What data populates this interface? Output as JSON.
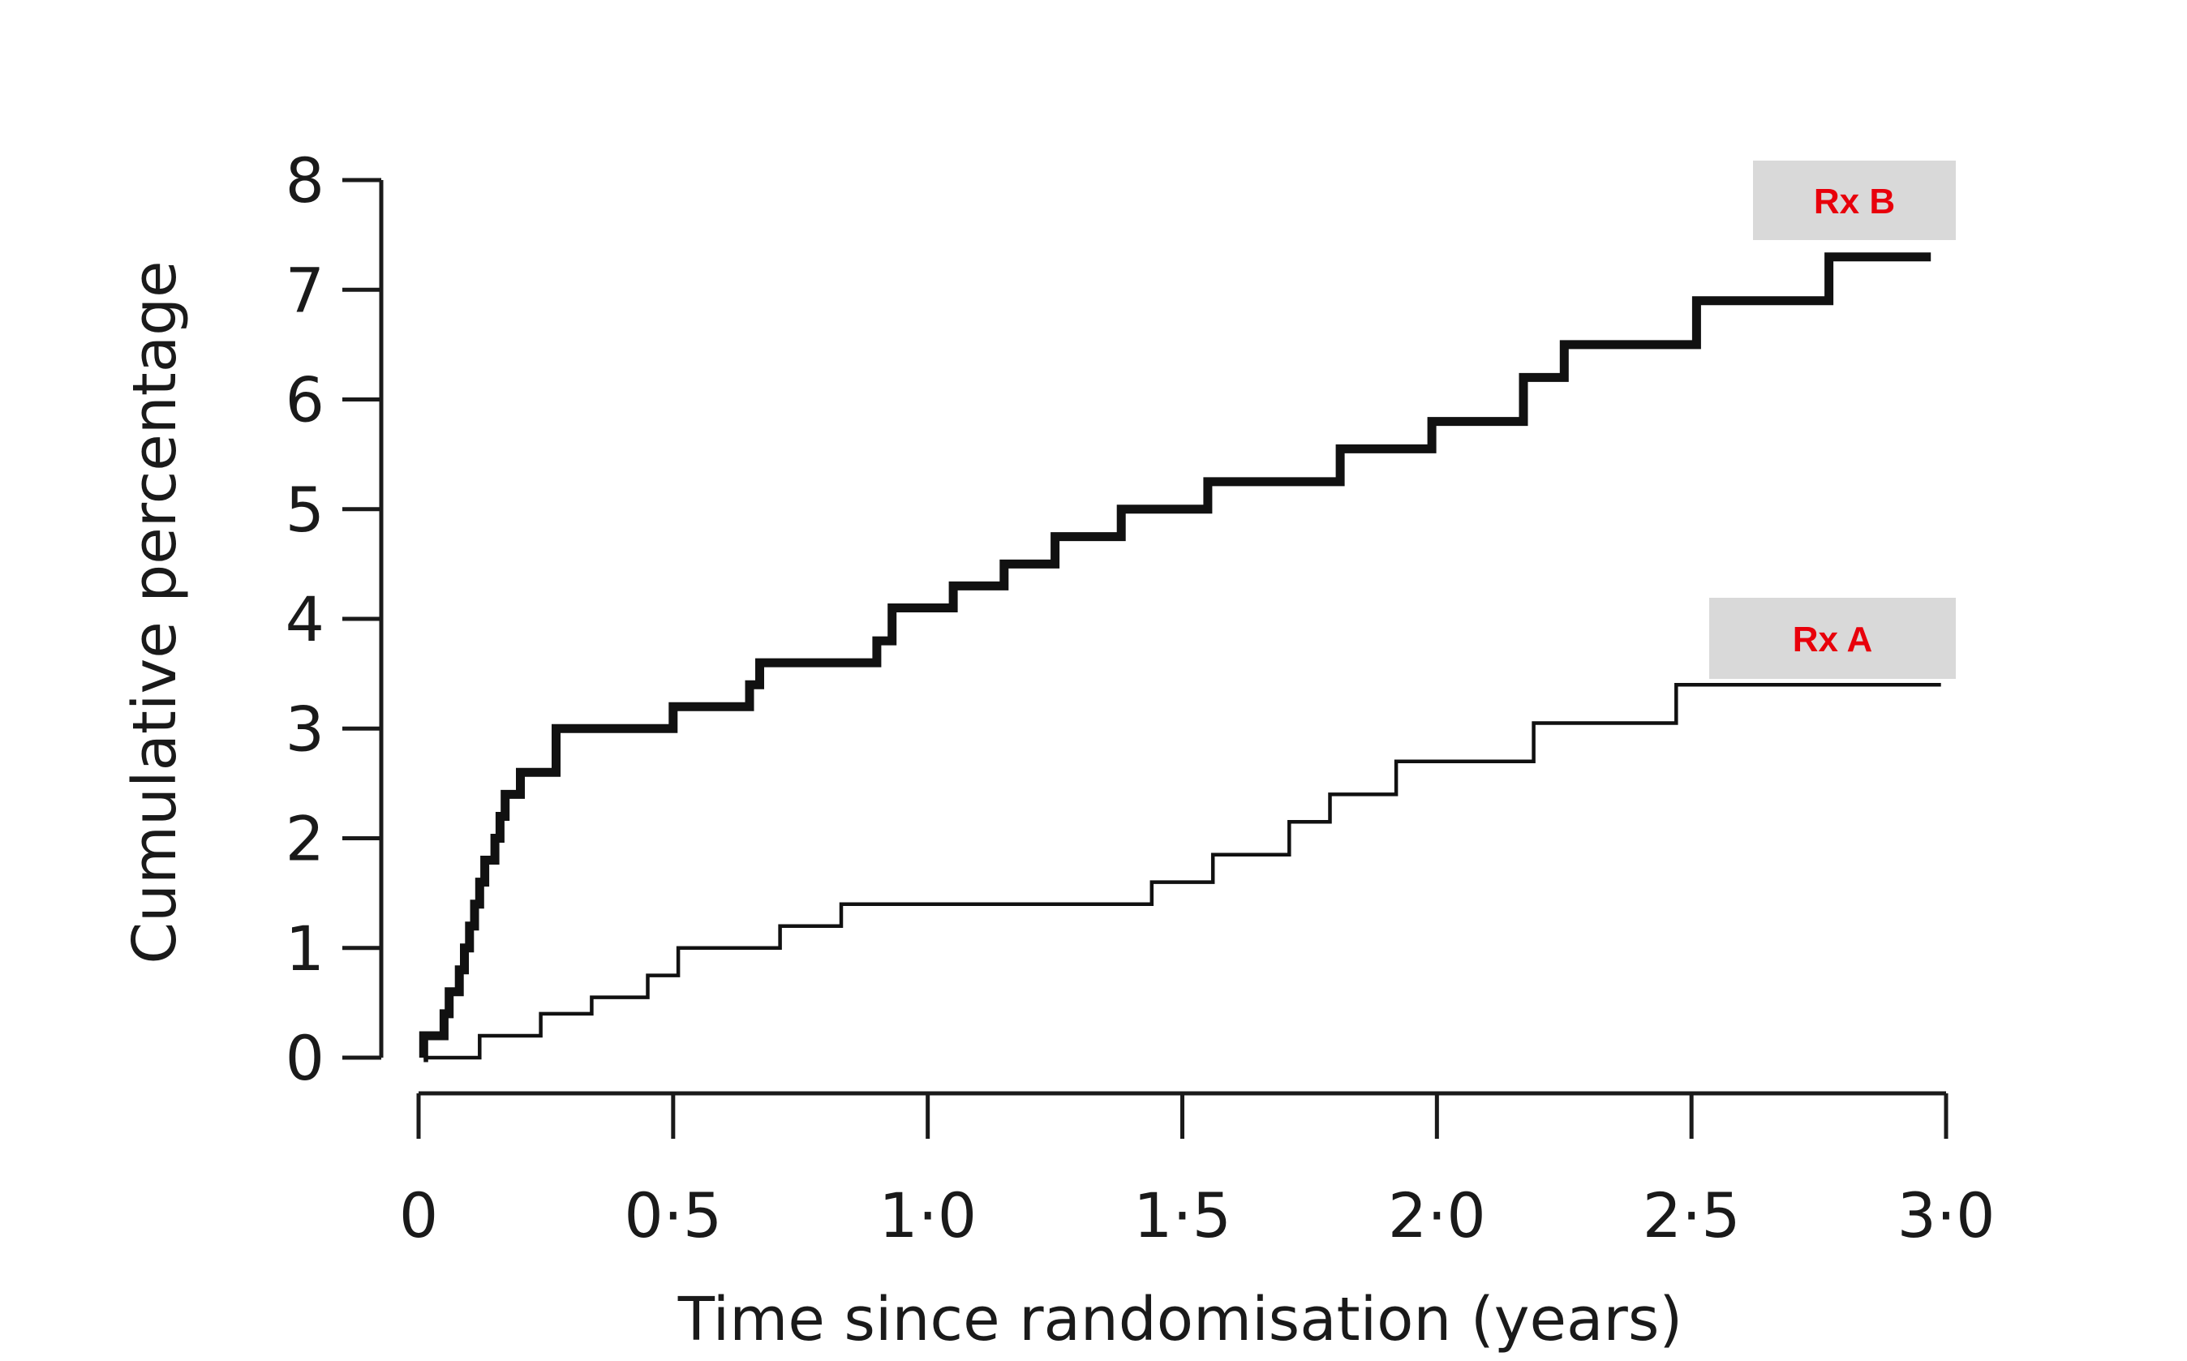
{
  "chart_data": {
    "type": "line",
    "step": true,
    "xlabel": "Time since randomisation (years)",
    "ylabel": "Cumulative percentage",
    "xlim": [
      0,
      3
    ],
    "ylim": [
      0,
      8
    ],
    "x_ticks": [
      {
        "value": 0,
        "label": "0"
      },
      {
        "value": 0.5,
        "label": "0·5"
      },
      {
        "value": 1.0,
        "label": "1·0"
      },
      {
        "value": 1.5,
        "label": "1·5"
      },
      {
        "value": 2.0,
        "label": "2·0"
      },
      {
        "value": 2.5,
        "label": "2·5"
      },
      {
        "value": 3.0,
        "label": "3·0"
      }
    ],
    "y_ticks": [
      {
        "value": 0,
        "label": "0"
      },
      {
        "value": 1,
        "label": "1"
      },
      {
        "value": 2,
        "label": "2"
      },
      {
        "value": 3,
        "label": "3"
      },
      {
        "value": 4,
        "label": "4"
      },
      {
        "value": 5,
        "label": "5"
      },
      {
        "value": 6,
        "label": "6"
      },
      {
        "value": 7,
        "label": "7"
      },
      {
        "value": 8,
        "label": "8"
      }
    ],
    "grid": false,
    "legend_placement": "right, labels at line ends",
    "label_color": "#e8000b",
    "label_background": "#d9d9d9",
    "series": [
      {
        "name": "Rx B",
        "line": "thick",
        "x": [
          0.01,
          0.05,
          0.06,
          0.08,
          0.09,
          0.1,
          0.11,
          0.12,
          0.13,
          0.15,
          0.16,
          0.17,
          0.18,
          0.2,
          0.23,
          0.27,
          0.5,
          0.65,
          0.67,
          0.9,
          0.93,
          1.05,
          1.15,
          1.25,
          1.38,
          1.55,
          1.81,
          1.99,
          2.17,
          2.25,
          2.51,
          2.77,
          2.97
        ],
        "y": [
          0.2,
          0.4,
          0.6,
          0.8,
          1.0,
          1.2,
          1.4,
          1.6,
          1.8,
          2.0,
          2.2,
          2.4,
          2.4,
          2.6,
          2.6,
          3.0,
          3.2,
          3.4,
          3.6,
          3.8,
          4.1,
          4.3,
          4.5,
          4.75,
          5.0,
          5.25,
          5.55,
          5.8,
          6.2,
          6.5,
          6.9,
          7.3,
          7.3
        ]
      },
      {
        "name": "Rx A",
        "line": "thin",
        "x": [
          0.01,
          0.12,
          0.24,
          0.34,
          0.45,
          0.51,
          0.71,
          0.83,
          1.44,
          1.56,
          1.71,
          1.79,
          1.92,
          2.19,
          2.47,
          2.99
        ],
        "y": [
          0.0,
          0.2,
          0.4,
          0.55,
          0.75,
          1.0,
          1.2,
          1.4,
          1.6,
          1.85,
          2.15,
          2.4,
          2.7,
          3.05,
          3.4,
          3.4
        ]
      }
    ]
  }
}
